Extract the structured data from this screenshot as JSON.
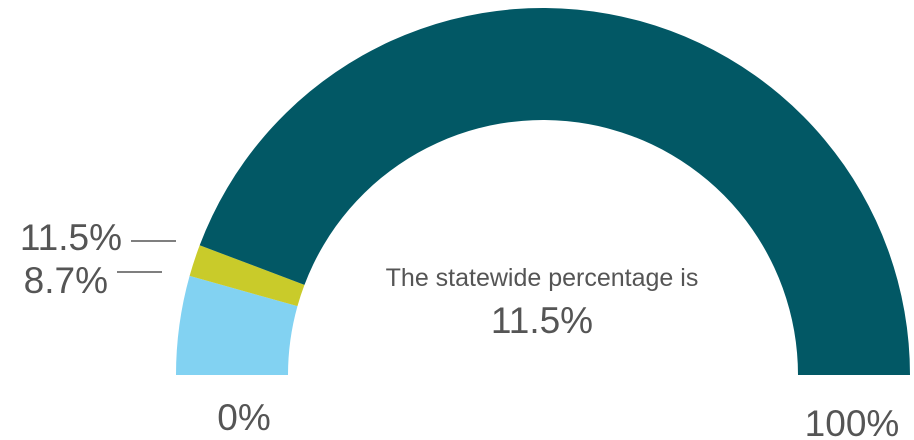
{
  "chart_data": {
    "type": "gauge",
    "range": [
      0,
      100
    ],
    "segments": [
      {
        "value": 8.7,
        "color": "#82D2F2",
        "label": "8.7%"
      },
      {
        "value": 2.8,
        "color": "#C9CB2A",
        "label": "11.5%"
      },
      {
        "value": 88.5,
        "color": "#025865",
        "label": ""
      }
    ],
    "marker_labels": [
      "11.5%",
      "8.7%"
    ],
    "min_label": "0%",
    "max_label": "100%",
    "center_text": "The statewide percentage is",
    "center_value": "11.5%"
  }
}
